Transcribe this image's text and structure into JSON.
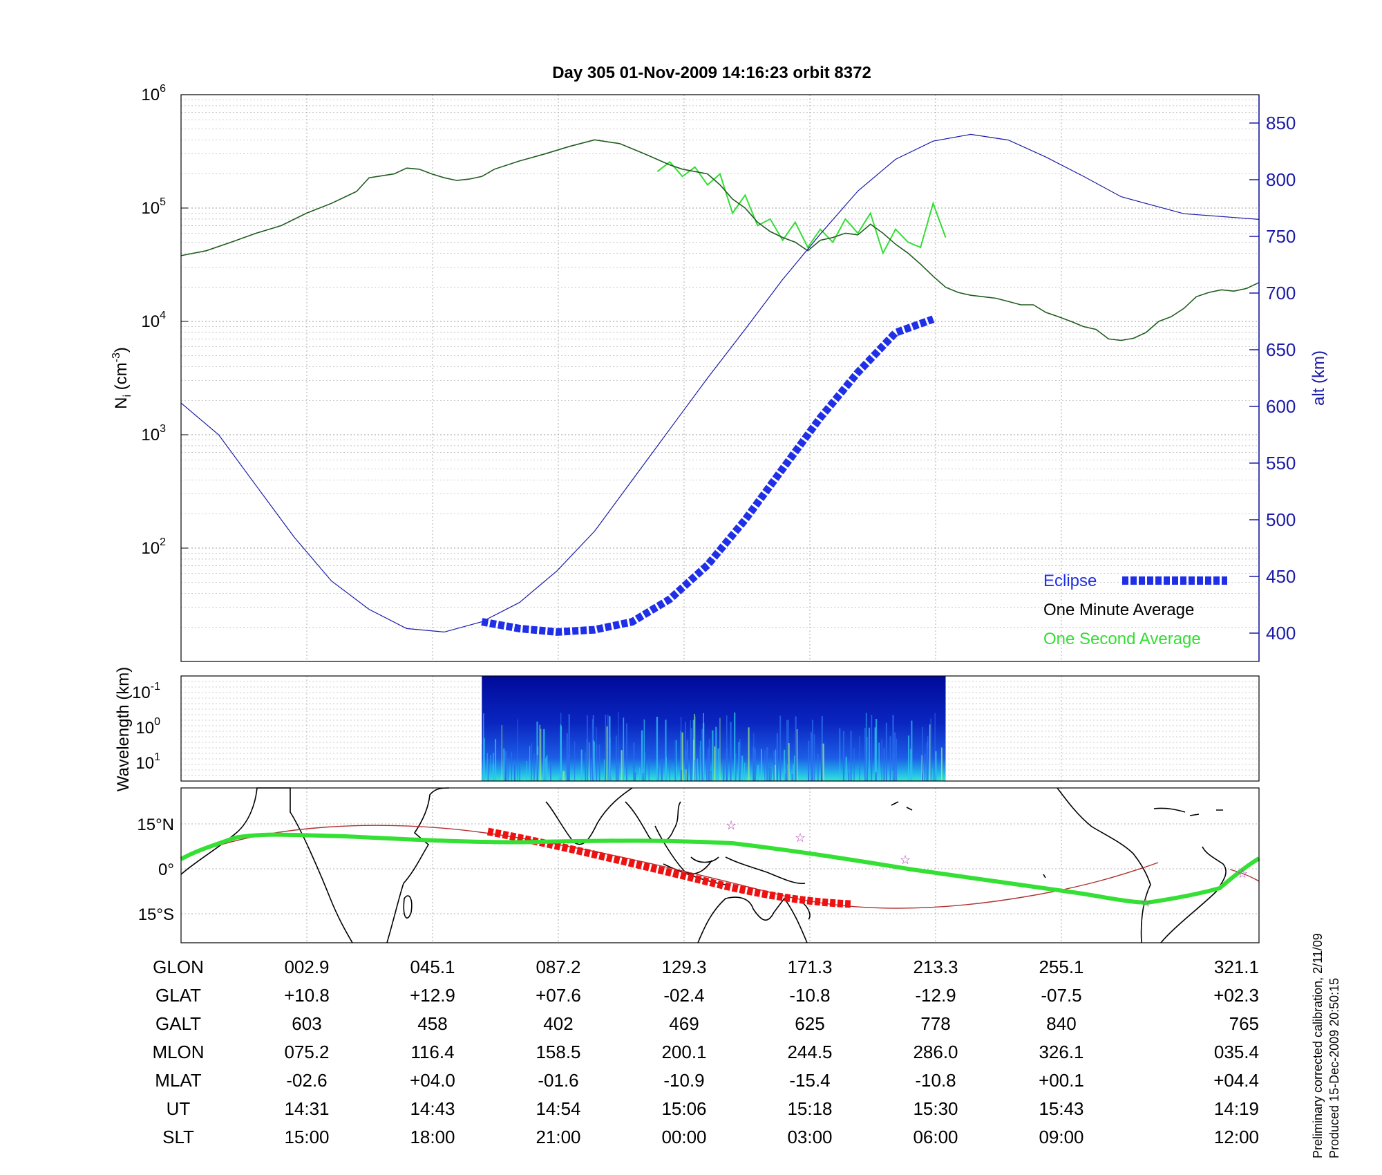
{
  "title": "Day 305  01-Nov-2009 14:16:23   orbit 8372",
  "colors": {
    "altitude": "#1a1aa8",
    "density_minute": "#1e5c1e",
    "density_second": "#33dd33",
    "eclipse": "#1f2fe8",
    "ground_track": "#33e033",
    "orbit_line": "#b03030",
    "orbit_eclipse": "#ee1111",
    "stars": "#b03ab0",
    "grid": "#9a9a9a"
  },
  "chart_data": [
    {
      "type": "line",
      "name": "ion-density-and-altitude",
      "xlim": [
        0,
        86
      ],
      "ylabel_left": "N_i (cm^-3)",
      "yscale_left": "log",
      "ylim_left": [
        10,
        1000000
      ],
      "y_ticks_left": [
        {
          "value": 100,
          "base": "10",
          "exp": "2"
        },
        {
          "value": 1000,
          "base": "10",
          "exp": "3"
        },
        {
          "value": 10000,
          "base": "10",
          "exp": "4"
        },
        {
          "value": 100000,
          "base": "10",
          "exp": "5"
        },
        {
          "value": 1000000,
          "base": "10",
          "exp": "6"
        }
      ],
      "ylabel_right": "alt (km)",
      "ylim_right": [
        375,
        875
      ],
      "y_ticks_right": [
        400,
        450,
        500,
        550,
        600,
        650,
        700,
        750,
        800,
        850
      ],
      "grid": true,
      "legend": {
        "position": "bottom-right",
        "entries": [
          "Eclipse",
          "One Minute Average",
          "One Second Average"
        ]
      },
      "series": [
        {
          "name": "One Minute Average",
          "axis": "left",
          "points": [
            [
              0,
              38000
            ],
            [
              2,
              42000
            ],
            [
              4,
              50000
            ],
            [
              6,
              60000
            ],
            [
              8,
              70000
            ],
            [
              10,
              90000
            ],
            [
              12,
              110000
            ],
            [
              14,
              140000
            ],
            [
              15,
              185000
            ],
            [
              17,
              200000
            ],
            [
              18,
              225000
            ],
            [
              19,
              220000
            ],
            [
              20,
              200000
            ],
            [
              21,
              185000
            ],
            [
              22,
              175000
            ],
            [
              23,
              180000
            ],
            [
              24,
              190000
            ],
            [
              25,
              220000
            ],
            [
              27,
              260000
            ],
            [
              29,
              300000
            ],
            [
              31,
              350000
            ],
            [
              33,
              400000
            ],
            [
              35,
              370000
            ],
            [
              37,
              300000
            ],
            [
              39,
              240000
            ],
            [
              40,
              220000
            ],
            [
              42,
              200000
            ],
            [
              43,
              160000
            ],
            [
              44,
              120000
            ],
            [
              45,
              100000
            ],
            [
              46,
              75000
            ],
            [
              47,
              62000
            ],
            [
              48,
              55000
            ],
            [
              49,
              50000
            ],
            [
              50,
              42000
            ],
            [
              51,
              52000
            ],
            [
              52,
              55000
            ],
            [
              53,
              60000
            ],
            [
              54,
              58000
            ],
            [
              55,
              72000
            ],
            [
              56,
              60000
            ],
            [
              57,
              48000
            ],
            [
              58,
              40000
            ],
            [
              59,
              32000
            ],
            [
              60,
              25000
            ],
            [
              61,
              20000
            ],
            [
              62,
              18000
            ],
            [
              63,
              17000
            ],
            [
              64,
              16500
            ],
            [
              65,
              16000
            ],
            [
              66,
              15000
            ],
            [
              67,
              14000
            ],
            [
              68,
              14000
            ],
            [
              69,
              12000
            ],
            [
              70,
              11000
            ],
            [
              71,
              10000
            ],
            [
              72,
              9000
            ],
            [
              73,
              8500
            ],
            [
              74,
              7000
            ],
            [
              75,
              6800
            ],
            [
              76,
              7100
            ],
            [
              77,
              8000
            ],
            [
              78,
              10000
            ],
            [
              79,
              11000
            ],
            [
              80,
              13000
            ],
            [
              81,
              16500
            ],
            [
              82,
              18000
            ],
            [
              83,
              19000
            ],
            [
              84,
              18500
            ],
            [
              85,
              19500
            ],
            [
              86,
              22000
            ]
          ]
        },
        {
          "name": "One Second Average",
          "axis": "left",
          "points": [
            [
              38,
              210000
            ],
            [
              39,
              255000
            ],
            [
              40,
              190000
            ],
            [
              41,
              230000
            ],
            [
              42,
              160000
            ],
            [
              43,
              200000
            ],
            [
              44,
              90000
            ],
            [
              45,
              130000
            ],
            [
              46,
              70000
            ],
            [
              47,
              80000
            ],
            [
              48,
              52000
            ],
            [
              49,
              75000
            ],
            [
              50,
              45000
            ],
            [
              51,
              65000
            ],
            [
              52,
              50000
            ],
            [
              53,
              80000
            ],
            [
              54,
              60000
            ],
            [
              55,
              90000
            ],
            [
              56,
              40000
            ],
            [
              57,
              65000
            ],
            [
              58,
              50000
            ],
            [
              59,
              45000
            ],
            [
              60,
              110000
            ],
            [
              61,
              55000
            ]
          ]
        },
        {
          "name": "Altitude",
          "axis": "right",
          "points": [
            [
              0,
              603
            ],
            [
              3,
              575
            ],
            [
              6,
              530
            ],
            [
              9,
              485
            ],
            [
              12,
              446
            ],
            [
              15,
              421
            ],
            [
              18,
              404
            ],
            [
              21,
              401
            ],
            [
              24,
              410
            ],
            [
              27,
              427
            ],
            [
              30,
              455
            ],
            [
              33,
              490
            ],
            [
              36,
              535
            ],
            [
              39,
              580
            ],
            [
              42,
              625
            ],
            [
              45,
              668
            ],
            [
              48,
              712
            ],
            [
              51,
              752
            ],
            [
              54,
              790
            ],
            [
              57,
              818
            ],
            [
              60,
              834
            ],
            [
              63,
              840
            ],
            [
              66,
              835
            ],
            [
              69,
              820
            ],
            [
              72,
              803
            ],
            [
              75,
              785
            ],
            [
              80,
              770
            ],
            [
              86,
              765
            ]
          ]
        },
        {
          "name": "Eclipse",
          "axis": "right",
          "points": [
            [
              24,
              410
            ],
            [
              27,
              404
            ],
            [
              30,
              401
            ],
            [
              33,
              403
            ],
            [
              36,
              410
            ],
            [
              39,
              430
            ],
            [
              42,
              460
            ],
            [
              45,
              500
            ],
            [
              48,
              545
            ],
            [
              51,
              590
            ],
            [
              54,
              630
            ],
            [
              57,
              665
            ],
            [
              60,
              677
            ]
          ]
        }
      ]
    },
    {
      "type": "heatmap",
      "name": "wavelength-spectrogram",
      "ylabel": "Wavelength (km)",
      "y_ticks": [
        {
          "base": "10",
          "exp": "-1"
        },
        {
          "base": "10",
          "exp": "0"
        },
        {
          "base": "10",
          "exp": "1"
        }
      ],
      "x_range_with_data": [
        24,
        61
      ],
      "grid": true
    },
    {
      "type": "line",
      "name": "ground-track-map",
      "y_ticks": [
        "15°N",
        "0°",
        "15°S"
      ],
      "series": [
        {
          "name": "Ground Track"
        },
        {
          "name": "Orbit"
        },
        {
          "name": "Eclipse"
        }
      ]
    },
    {
      "type": "table",
      "name": "orbit-parameters",
      "rows": [
        {
          "label": "GLON",
          "values": [
            "002.9",
            "045.1",
            "087.2",
            "129.3",
            "171.3",
            "213.3",
            "255.1",
            "321.1"
          ]
        },
        {
          "label": "GLAT",
          "values": [
            "+10.8",
            "+12.9",
            "+07.6",
            "-02.4",
            "-10.8",
            "-12.9",
            "-07.5",
            "+02.3"
          ]
        },
        {
          "label": "GALT",
          "values": [
            "603",
            "458",
            "402",
            "469",
            "625",
            "778",
            "840",
            "765"
          ]
        },
        {
          "label": "MLON",
          "values": [
            "075.2",
            "116.4",
            "158.5",
            "200.1",
            "244.5",
            "286.0",
            "326.1",
            "035.4"
          ]
        },
        {
          "label": "MLAT",
          "values": [
            "-02.6",
            "+04.0",
            "-01.6",
            "-10.9",
            "-15.4",
            "-10.8",
            "+00.1",
            "+04.4"
          ]
        },
        {
          "label": "UT",
          "values": [
            "14:31",
            "14:43",
            "14:54",
            "15:06",
            "15:18",
            "15:30",
            "15:43",
            "14:19"
          ]
        },
        {
          "label": "SLT",
          "values": [
            "15:00",
            "18:00",
            "21:00",
            "00:00",
            "03:00",
            "06:00",
            "09:00",
            "12:00"
          ]
        }
      ]
    }
  ],
  "footer": {
    "line1": "Preliminary corrected calibration, 2/11/09",
    "line2": "Produced 15-Dec-2009 20:50:15"
  }
}
